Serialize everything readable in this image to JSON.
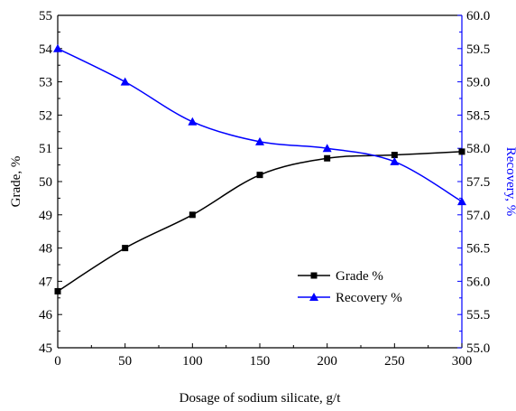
{
  "chart_data": {
    "type": "line",
    "title": "",
    "xlabel": "Dosage of sodium silicate, g/t",
    "ylabel_left": "Grade, %",
    "ylabel_right": "Recovery, %",
    "xlim": [
      0,
      300
    ],
    "xticks": [
      0,
      50,
      100,
      150,
      200,
      250,
      300
    ],
    "ylim_left": [
      45,
      55
    ],
    "yticks_left": [
      45,
      46,
      47,
      48,
      49,
      50,
      51,
      52,
      53,
      54,
      55
    ],
    "ylim_right": [
      55.0,
      60.0
    ],
    "yticks_right": [
      55.0,
      55.5,
      56.0,
      56.5,
      57.0,
      57.5,
      58.0,
      58.5,
      59.0,
      59.5,
      60.0
    ],
    "grid": false,
    "legend_position": "bottom-right",
    "series": [
      {
        "name": "Grade %",
        "axis": "left",
        "color": "#000000",
        "marker": "square",
        "x": [
          0,
          50,
          100,
          150,
          200,
          250,
          300
        ],
        "y": [
          46.7,
          48.0,
          49.0,
          50.2,
          50.7,
          50.8,
          50.9
        ]
      },
      {
        "name": "Recovery %",
        "axis": "right",
        "color": "#0000ff",
        "marker": "triangle",
        "x": [
          0,
          50,
          100,
          150,
          200,
          250,
          300
        ],
        "y": [
          59.5,
          59.0,
          58.4,
          58.1,
          58.0,
          57.8,
          57.2
        ]
      }
    ]
  }
}
